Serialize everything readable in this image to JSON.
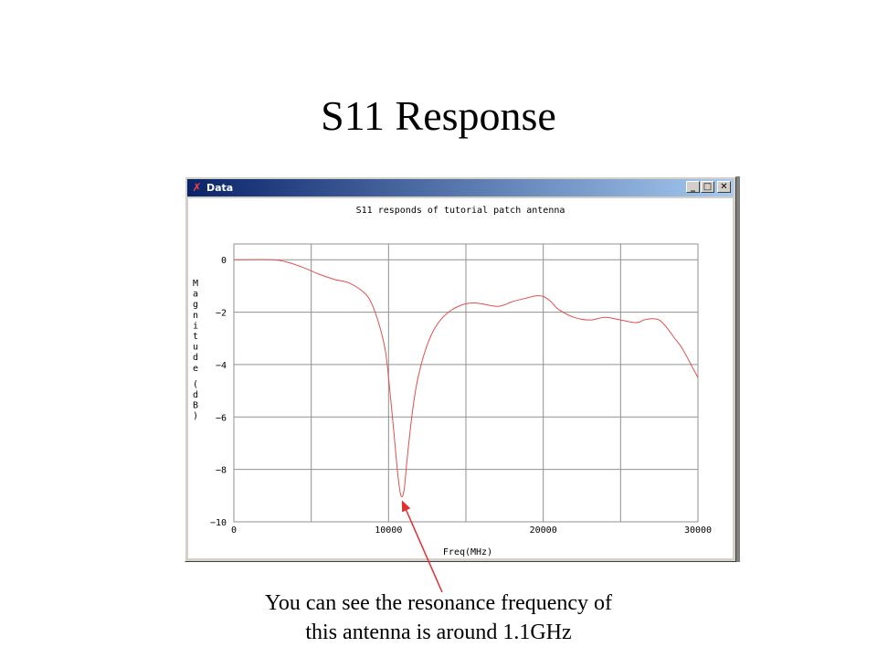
{
  "slide": {
    "title": "S11 Response",
    "caption_line1": "You can see the resonance frequency of",
    "caption_line2": "this antenna is around 1.1GHz"
  },
  "window": {
    "title": "Data",
    "minimize_label": "_",
    "maximize_label": "□",
    "close_label": "✕",
    "icon": "app-logo-icon"
  },
  "colors": {
    "curve": "#e05050",
    "arrow": "#e03030",
    "grid": "#909090",
    "titlebar": "#0a246a"
  },
  "chart_data": {
    "type": "line",
    "title": "S11 responds of tutorial patch antenna",
    "xlabel": "Freq(MHz)",
    "ylabel": "Magnitude (dB)",
    "xlim": [
      0,
      30000
    ],
    "ylim": [
      -10,
      0.6
    ],
    "xticks": [
      0,
      10000,
      20000,
      30000
    ],
    "yticks": [
      0,
      -2,
      -4,
      -6,
      -8,
      -10
    ],
    "grid": true,
    "series": [
      {
        "x": [
          0,
          2500,
          3500,
          4500,
          5500,
          6500,
          7500,
          8500,
          9000,
          9500,
          9800,
          10000,
          10300,
          10600,
          10800,
          11000,
          11200,
          11500,
          11800,
          12200,
          12600,
          13000,
          13500,
          14000,
          14500,
          15000,
          15500,
          16000,
          17000,
          17500,
          18000,
          19000,
          19500,
          20000,
          20500,
          21000,
          22000,
          23000,
          24000,
          25000,
          26000,
          26500,
          27000,
          27500,
          28000,
          28500,
          29000,
          30000
        ],
        "y": [
          0,
          0,
          -0.1,
          -0.3,
          -0.55,
          -0.75,
          -0.9,
          -1.3,
          -1.8,
          -2.7,
          -3.5,
          -4.5,
          -6.3,
          -8.2,
          -9.0,
          -8.8,
          -7.6,
          -6.0,
          -4.8,
          -3.8,
          -3.1,
          -2.6,
          -2.2,
          -1.95,
          -1.78,
          -1.68,
          -1.65,
          -1.68,
          -1.78,
          -1.72,
          -1.6,
          -1.45,
          -1.38,
          -1.4,
          -1.6,
          -1.9,
          -2.2,
          -2.3,
          -2.2,
          -2.3,
          -2.4,
          -2.3,
          -2.25,
          -2.3,
          -2.6,
          -3.0,
          -3.4,
          -4.5
        ]
      }
    ],
    "annotation": {
      "text_ref": "caption",
      "points_to": {
        "x": 10800,
        "y": -9.0
      }
    }
  }
}
